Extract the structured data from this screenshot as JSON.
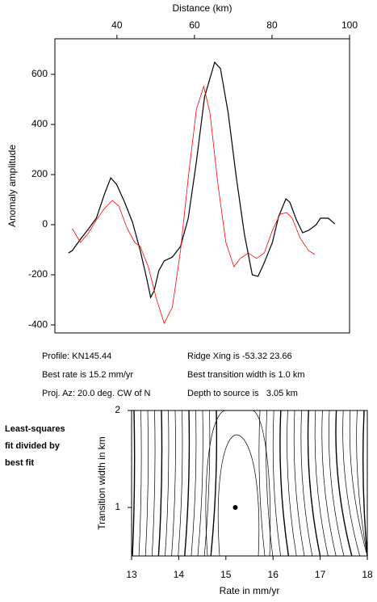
{
  "chart_data": [
    {
      "type": "line",
      "xlabel": "Distance (km)",
      "ylabel": "Anomaly amplitude",
      "xlim": [
        24,
        100
      ],
      "ylim": [
        -432,
        742
      ],
      "xticks": [
        40,
        60,
        80,
        100
      ],
      "yticks": [
        -400,
        -200,
        0,
        200,
        400,
        600
      ],
      "series": [
        {
          "color": "#000000",
          "x": [
            27.5,
            28.5,
            30.6,
            32.7,
            34.7,
            36.8,
            38.4,
            39.9,
            42,
            44,
            46,
            47.7,
            48.7,
            49.6,
            50.8,
            52.2,
            54.3,
            56.4,
            58.4,
            60.5,
            62.6,
            65.2,
            66.7,
            68.7,
            70.8,
            72.9,
            74.9,
            76.4,
            78,
            80.1,
            81.7,
            83.6,
            84.6,
            86.3,
            87.9,
            89.4,
            91.4,
            92.5,
            94.5,
            96.2
          ],
          "values": [
            -113,
            -103,
            -58,
            -16,
            26,
            123,
            187,
            161,
            90,
            10,
            -103,
            -216,
            -290,
            -264,
            -184,
            -145,
            -129,
            -87,
            26,
            252,
            510,
            648,
            623,
            445,
            187,
            -39,
            -200,
            -206,
            -152,
            -71,
            32,
            103,
            90,
            19,
            -32,
            -23,
            0,
            26,
            26,
            3
          ]
        },
        {
          "color": "#ff0000",
          "x": [
            28.5,
            30.6,
            32.7,
            34.7,
            36.8,
            38.8,
            40.5,
            42.6,
            44.6,
            46,
            48.1,
            50.2,
            52.2,
            54.3,
            56.4,
            58.4,
            60.5,
            62.4,
            64,
            66.1,
            68.1,
            70.2,
            71.8,
            73.9,
            76,
            78,
            80.1,
            82.1,
            83.8,
            85.2,
            87.3,
            89.4,
            91
          ],
          "values": [
            -16,
            -71,
            -32,
            19,
            65,
            97,
            74,
            -13,
            -71,
            -87,
            -168,
            -297,
            -394,
            -329,
            -103,
            187,
            461,
            552,
            445,
            155,
            -71,
            -168,
            -135,
            -113,
            -135,
            -113,
            -23,
            42,
            48,
            26,
            -55,
            -103,
            -119
          ]
        }
      ],
      "annotations": [
        "Profile: KN145.44",
        "Best rate is 15.2 mm/yr",
        "Proj. Az: 20.0 deg. CW of N",
        "Ridge Xing is -53.32 23.66",
        "Best transition width is 1.0 km",
        "Depth to source is   3.05 km"
      ]
    },
    {
      "type": "contour",
      "xlabel": "Rate in mm/yr",
      "ylabel": "Transition width in km",
      "xlim": [
        13,
        18
      ],
      "ylim": [
        0.5,
        2
      ],
      "xticks": [
        13,
        14,
        15,
        16,
        17,
        18
      ],
      "yticks": [
        1,
        2
      ],
      "annotation": [
        "Least-squares",
        "fit divided by",
        "best fit"
      ],
      "x": [
        15.2
      ],
      "values": [
        1.0
      ],
      "color": "#000000"
    }
  ]
}
